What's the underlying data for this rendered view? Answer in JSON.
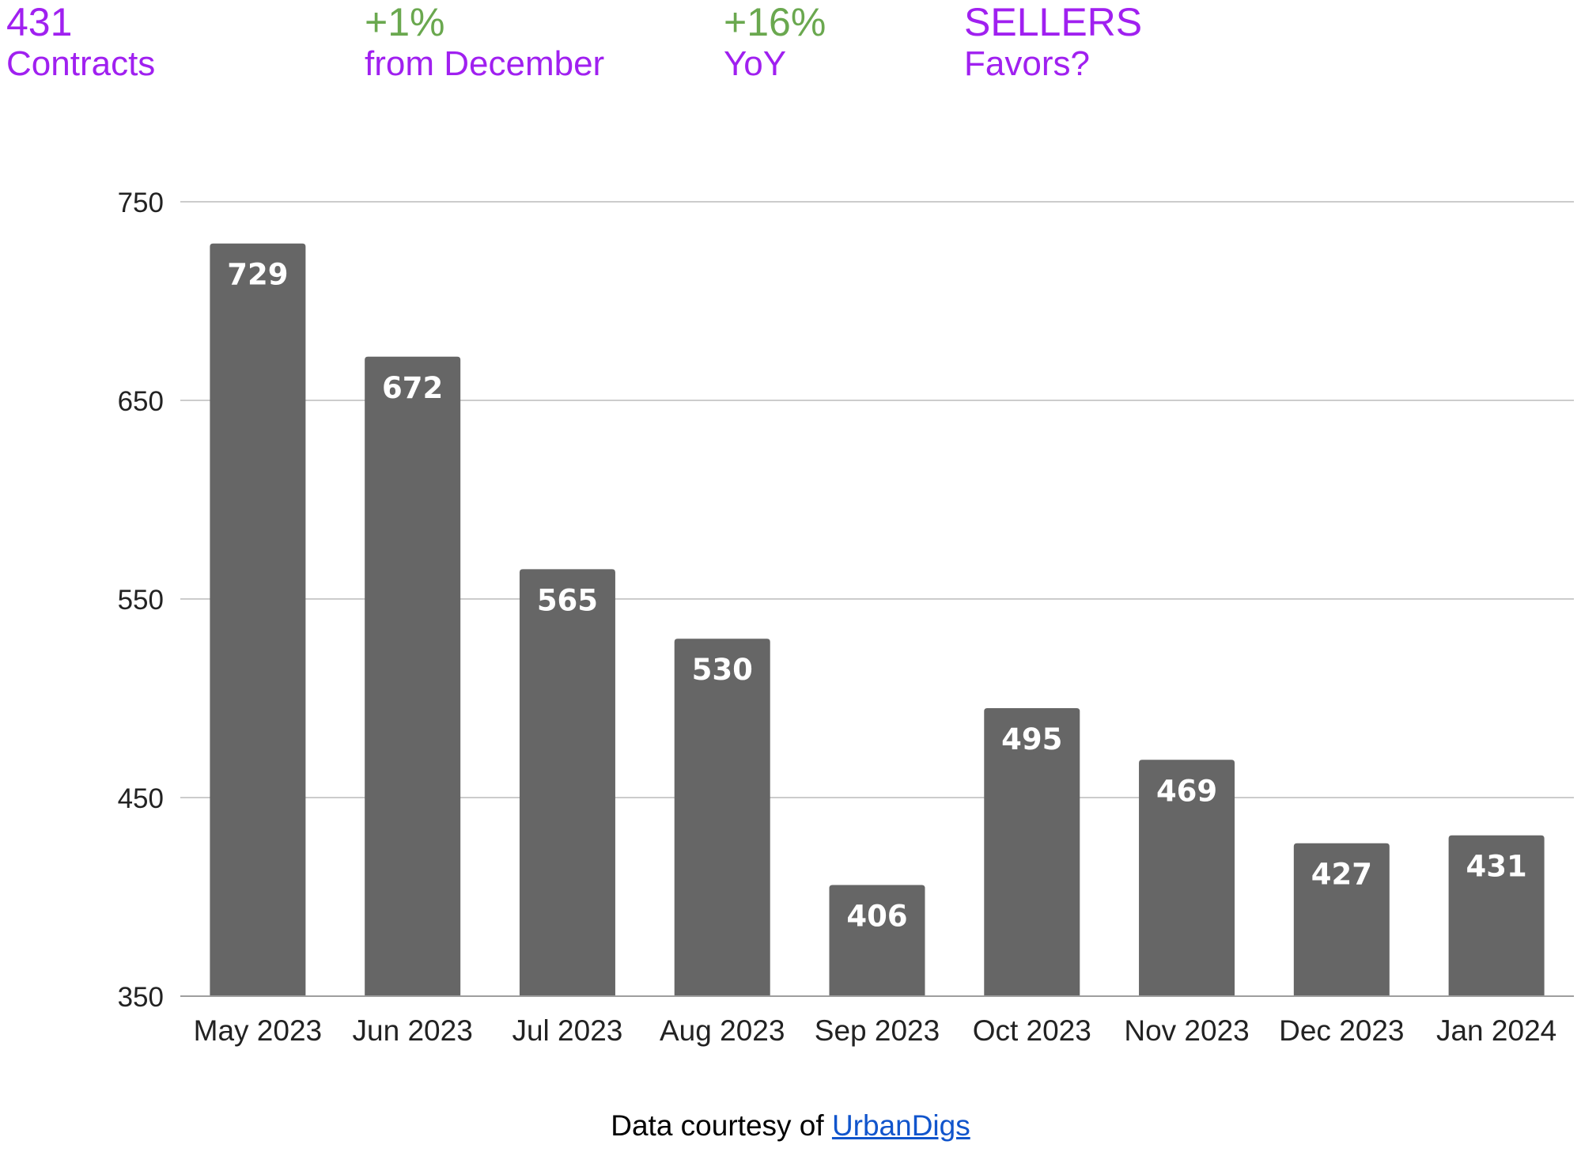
{
  "header": {
    "stats": [
      {
        "value": "431",
        "label": "Contracts",
        "value_color": "#a020f0",
        "label_color": "#a020f0"
      },
      {
        "value": "+1%",
        "label": "from December",
        "value_color": "#6aa84f",
        "label_color": "#a020f0"
      },
      {
        "value": "+16%",
        "label": "YoY",
        "value_color": "#6aa84f",
        "label_color": "#a020f0"
      },
      {
        "value": "SELLERS",
        "label": "Favors?",
        "value_color": "#a020f0",
        "label_color": "#a020f0"
      }
    ]
  },
  "chart_data": {
    "type": "bar",
    "categories": [
      "May 2023",
      "Jun 2023",
      "Jul 2023",
      "Aug 2023",
      "Sep 2023",
      "Oct 2023",
      "Nov 2023",
      "Dec 2023",
      "Jan 2024"
    ],
    "values": [
      729,
      672,
      565,
      530,
      406,
      495,
      469,
      427,
      431
    ],
    "ylim": [
      350,
      750
    ],
    "yticks": [
      350,
      450,
      550,
      650,
      750
    ],
    "grid": true,
    "bar_color": "#666666",
    "data_labels": true
  },
  "footer": {
    "prefix": "Data courtesy of",
    "link_text": "UrbanDigs"
  }
}
